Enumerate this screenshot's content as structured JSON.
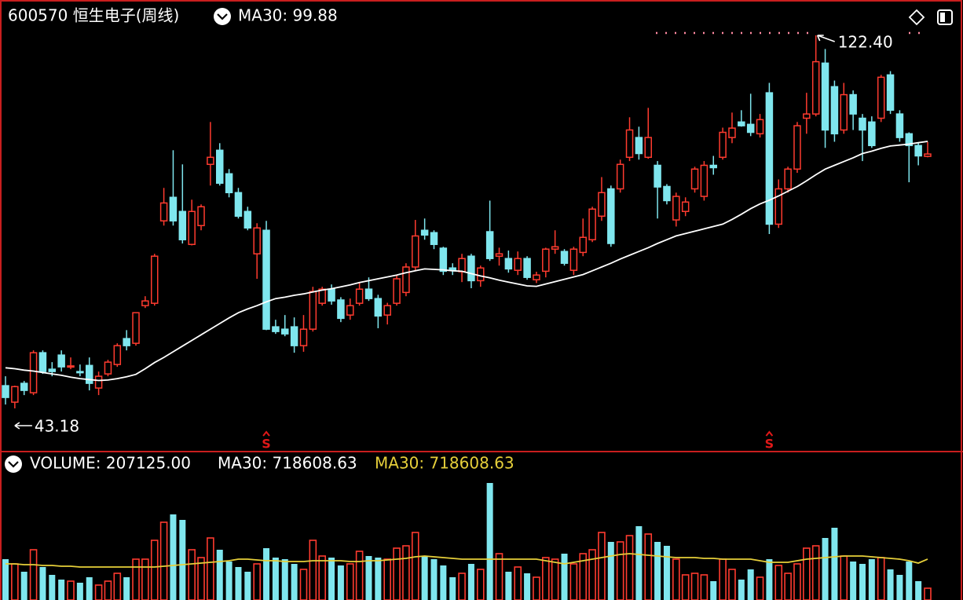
{
  "header": {
    "title": "600570 恒生电子(周线)",
    "ma_label": "MA30: 99.88"
  },
  "volume_header": {
    "label": "VOLUME: 207125.00",
    "ma_white": "MA30: 718608.63",
    "ma_yellow": "MA30: 718608.63"
  },
  "chart_data": {
    "type": "candlestick",
    "open": [
      48,
      44.5,
      48.5,
      46.5,
      55,
      51.5,
      54.5,
      52,
      51,
      52.3,
      47.5,
      50.5,
      52.5,
      58,
      57,
      65,
      65.5,
      83,
      88,
      85,
      78,
      82,
      95,
      98,
      93,
      89,
      85,
      76,
      81,
      60.5,
      60,
      60.5,
      56.5,
      60,
      65.5,
      68.5,
      66.2,
      63,
      65.5,
      68.5,
      66.5,
      63,
      65.5,
      67.8,
      73.2,
      81,
      80.5,
      77.2,
      73,
      72.2,
      75.5,
      70.3,
      80.7,
      75.5,
      75,
      72.5,
      75,
      70.5,
      72.3,
      77,
      76.5,
      72.5,
      76.3,
      79,
      84,
      89.8,
      89.8,
      96.5,
      100.7,
      96.5,
      94.8,
      90.3,
      83.2,
      85,
      89.8,
      88.2,
      94.8,
      96.5,
      100.7,
      104,
      103.5,
      101.5,
      110.2,
      82.3,
      89.8,
      94,
      104.8,
      105.7,
      116.5,
      111.5,
      102.3,
      109.8,
      104.8,
      104,
      104.8,
      114,
      105.7,
      101.5,
      99,
      96.7
    ],
    "high": [
      50,
      48,
      49,
      55.5,
      55.5,
      53,
      55.5,
      54,
      52.5,
      54,
      51,
      53.5,
      57,
      59.8,
      63.5,
      67,
      76,
      90,
      98,
      95,
      87.5,
      86.5,
      104,
      99.5,
      94,
      90,
      86,
      82.5,
      83,
      62,
      63,
      62.5,
      63,
      69,
      69,
      69.5,
      66.8,
      66.5,
      70,
      71,
      67.3,
      65.6,
      71.5,
      74,
      83.2,
      83.5,
      81,
      77.5,
      74,
      76,
      76,
      73.5,
      87.3,
      77.3,
      76.7,
      76.5,
      75.5,
      72.2,
      77.3,
      81,
      77,
      77.5,
      83.5,
      86,
      92.3,
      90.5,
      96,
      105,
      103,
      107,
      95.7,
      90.8,
      89,
      88,
      94.5,
      95.7,
      96.8,
      102.8,
      106,
      106.5,
      110,
      105.7,
      112.3,
      91.8,
      94.5,
      104,
      110.2,
      122.4,
      119.5,
      112.8,
      112.3,
      110.7,
      105.7,
      105.2,
      114,
      114.8,
      106.5,
      101.8,
      99.5,
      99.8
    ],
    "low": [
      44,
      43.18,
      46,
      46,
      50.5,
      50,
      51,
      51.5,
      50,
      47,
      46,
      50,
      52,
      55.5,
      56.5,
      64.5,
      65,
      82,
      82,
      78.2,
      77.8,
      81,
      90.5,
      90.5,
      88,
      83.5,
      81,
      70.7,
      59.8,
      59,
      58.5,
      55,
      55.2,
      59.5,
      65,
      65.2,
      61.5,
      62,
      65,
      66,
      60.2,
      61,
      65,
      67,
      72.3,
      79,
      77,
      71.5,
      71.5,
      70,
      68.7,
      69,
      74.5,
      73.5,
      72,
      71.5,
      70.5,
      69.8,
      71,
      76,
      73.5,
      71.5,
      75.5,
      78.5,
      83,
      77.5,
      89,
      95.7,
      96,
      96.2,
      83.5,
      86.5,
      81.8,
      84,
      89,
      87.3,
      92.8,
      96,
      99.5,
      103,
      101,
      100.7,
      80.2,
      81.5,
      89,
      93.2,
      101.5,
      105.2,
      98.5,
      99.8,
      101.5,
      102.3,
      95.7,
      98.5,
      104,
      105.7,
      99.8,
      91.2,
      94.8,
      96.5
    ],
    "close": [
      45.5,
      47.8,
      47,
      55,
      51,
      51,
      52,
      52.2,
      50.8,
      48.5,
      50,
      53,
      56.5,
      56.5,
      63.5,
      66,
      75.5,
      86.8,
      83,
      79,
      85,
      86,
      96.5,
      91,
      89,
      84,
      81.5,
      81.5,
      60,
      59.5,
      59,
      56.5,
      60,
      68,
      68.5,
      66,
      62.3,
      65,
      68.5,
      66.5,
      62.8,
      65,
      70.7,
      73.2,
      79.8,
      80,
      78,
      72.3,
      72.5,
      75,
      70.3,
      73,
      75,
      76,
      72.8,
      75,
      71,
      71.5,
      77,
      77.5,
      74,
      77,
      79.5,
      85.5,
      89,
      78.2,
      95,
      102.3,
      97.3,
      100.7,
      90.2,
      87.3,
      88.2,
      87,
      94,
      94.8,
      94.3,
      101.8,
      102.7,
      103.2,
      101.8,
      104.5,
      82.3,
      89.8,
      94,
      103.2,
      105.7,
      116.8,
      102.3,
      101.5,
      109.8,
      105.7,
      102.3,
      99,
      113.5,
      106.5,
      100.7,
      99,
      96.8,
      97.2
    ],
    "ma30": [
      51.8,
      51.6,
      51.3,
      51.1,
      50.8,
      50.5,
      50.2,
      49.8,
      49.5,
      49.3,
      49.1,
      49.2,
      49.5,
      49.9,
      50.4,
      51.6,
      52.9,
      54,
      55.2,
      56.4,
      57.6,
      58.8,
      60,
      61.2,
      62.4,
      63.5,
      64.3,
      65,
      65.8,
      66.5,
      66.8,
      67.2,
      67.5,
      67.9,
      68.3,
      68.6,
      69,
      69.4,
      69.9,
      70.3,
      70.7,
      71.1,
      71.5,
      72,
      72.4,
      72.8,
      72.7,
      72.6,
      72.4,
      72.3,
      71.8,
      71.3,
      70.9,
      70.4,
      70,
      69.6,
      69.2,
      69.1,
      69.6,
      70.1,
      70.6,
      71.1,
      71.6,
      72.4,
      73.2,
      74,
      74.9,
      75.7,
      76.5,
      77.3,
      78.2,
      79,
      79.8,
      80.3,
      80.8,
      81.3,
      81.8,
      82.3,
      83.3,
      84.4,
      85.6,
      86.6,
      87.4,
      88.3,
      89.3,
      90.3,
      91.5,
      92.8,
      94,
      94.8,
      95.6,
      96.4,
      97.3,
      97.8,
      98.4,
      98.9,
      99.1,
      99.3,
      99.6,
      99.88
    ],
    "volume": [
      717600,
      634800,
      496800,
      883200,
      579600,
      441600,
      358800,
      331200,
      303600,
      400200,
      262200,
      331200,
      469200,
      400200,
      717600,
      717600,
      1048800,
      1366200,
      1504200,
      1407600,
      883200,
      745200,
      1090200,
      883200,
      676200,
      579600,
      496800,
      634800,
      910800,
      745200,
      717600,
      634800,
      538200,
      1048800,
      772800,
      745200,
      607200,
      634800,
      855600,
      772800,
      745200,
      717600,
      910800,
      952200,
      1186800,
      772800,
      717600,
      607200,
      400200,
      469200,
      634800,
      538200,
      2056200,
      814200,
      496800,
      579600,
      469200,
      400200,
      745200,
      717600,
      814200,
      634800,
      814200,
      883200,
      1186800,
      1021200,
      1021200,
      1131600,
      1297200,
      1159200,
      1021200,
      952200,
      717600,
      441600,
      469200,
      441600,
      331200,
      717600,
      538200,
      358800,
      538200,
      400200,
      717600,
      607200,
      469200,
      634800,
      910800,
      952200,
      1090200,
      1269600,
      772800,
      676200,
      634800,
      717600,
      745200,
      538200,
      441600,
      676200,
      331200,
      207125
    ],
    "volume_ma30": [
      634800,
      634800,
      621000,
      621000,
      607200,
      607200,
      593400,
      593400,
      579600,
      579600,
      579600,
      579600,
      579600,
      579600,
      579600,
      579600,
      579600,
      593400,
      607200,
      621000,
      634800,
      648600,
      662400,
      676200,
      690000,
      717600,
      717600,
      703800,
      690000,
      690000,
      676200,
      676200,
      676200,
      690000,
      690000,
      690000,
      690000,
      676200,
      676200,
      690000,
      690000,
      703800,
      717600,
      731400,
      759000,
      772800,
      759000,
      745200,
      731400,
      717600,
      717600,
      717600,
      717600,
      717600,
      717600,
      717600,
      717600,
      717600,
      690000,
      662400,
      634800,
      662400,
      690000,
      717600,
      745200,
      772800,
      800400,
      814200,
      800400,
      786600,
      772800,
      759000,
      745200,
      745200,
      745200,
      731400,
      731400,
      717600,
      717600,
      717600,
      717600,
      690000,
      662400,
      662400,
      662400,
      690000,
      717600,
      731400,
      745200,
      759000,
      772800,
      772800,
      772800,
      759000,
      745200,
      731400,
      717600,
      690000,
      648600,
      718608.63
    ],
    "annotations": {
      "high": "122.40",
      "low": "43.18"
    },
    "signals": [
      {
        "index": 28,
        "label": "S"
      },
      {
        "index": 82,
        "label": "S"
      }
    ],
    "colors": {
      "up": "#ff3b2f",
      "down": "#7fe6ee",
      "ma": "#ffffff",
      "volume_ma": "#e6cf3a"
    }
  }
}
